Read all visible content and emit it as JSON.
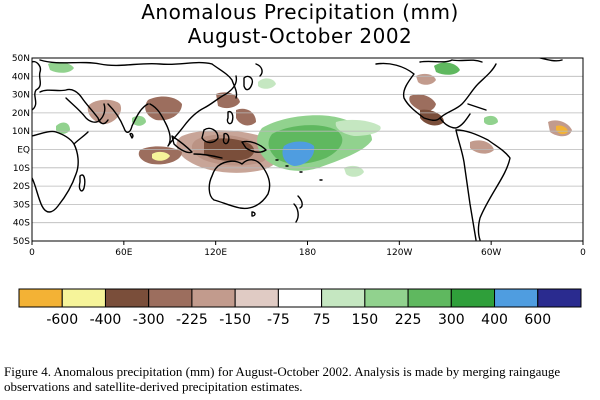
{
  "title": "Anomalous Precipitation (mm)",
  "subtitle": "August-October 2002",
  "lat_labels": [
    "50N",
    "40N",
    "30N",
    "20N",
    "10N",
    "EQ",
    "10S",
    "20S",
    "30S",
    "40S",
    "50S"
  ],
  "lon_labels": [
    "0",
    "60E",
    "120E",
    "180",
    "120W",
    "60W",
    "0"
  ],
  "legend": {
    "colors": [
      "#f3b235",
      "#f6f49a",
      "#7a4e3a",
      "#9c6e5e",
      "#c29b8d",
      "#e0cbc4",
      "#ffffff",
      "#c5e7c1",
      "#91d28e",
      "#5fb85f",
      "#2f9f3a",
      "#4f9de0",
      "#2a2b8f"
    ],
    "labels": [
      "-600",
      "-400",
      "-300",
      "-225",
      "-150",
      "-75",
      "75",
      "150",
      "225",
      "300",
      "400",
      "600"
    ]
  },
  "caption": "Figure 4. Anomalous precipitation (mm) for August-October 2002. Analysis is made by merging raingauge observations and satellite-derived precipitation estimates."
}
